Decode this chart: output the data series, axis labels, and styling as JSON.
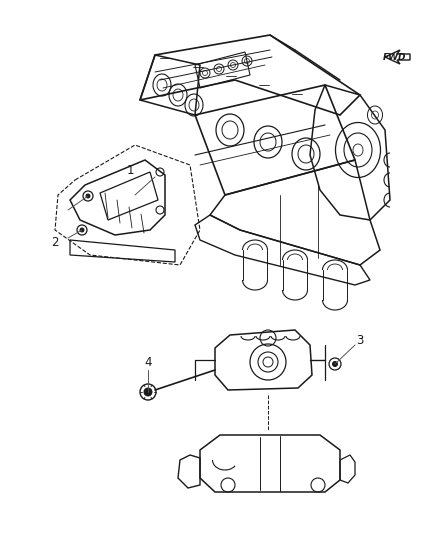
{
  "bg_color": "#ffffff",
  "fig_width": 4.38,
  "fig_height": 5.33,
  "dpi": 100,
  "line_color": "#1a1a1a",
  "label_fontsize": 8.5,
  "gray_line": "#888888",
  "light_gray": "#cccccc",
  "fwd_text": "FWD"
}
